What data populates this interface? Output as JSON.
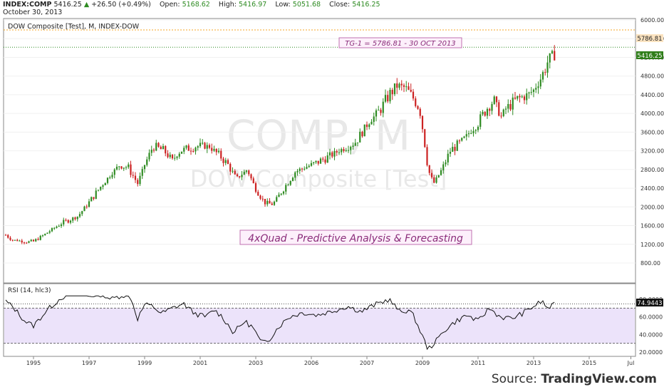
{
  "header": {
    "symbol": "INDEX:COMP",
    "last": "5416.25",
    "change": "+26.50 (+0.49%)",
    "open_label": "Open:",
    "open": "5168.62",
    "high_label": "High:",
    "high": "5416.97",
    "low_label": "Low:",
    "low": "5051.68",
    "close_label": "Close:",
    "close": "5416.25",
    "date": "October 30, 2013"
  },
  "chart_data": [
    {
      "type": "candlestick",
      "title": "DOW Composite [Test], M, INDEX-DOW",
      "watermark_big": "COMP, M",
      "watermark_small": "DOW Composite [Test]",
      "ylim": [
        900,
        6150
      ],
      "y_ticks": [
        "800.00",
        "1200.00",
        "1600.00",
        "2000.00",
        "2400.00",
        "2800.00",
        "3200.00",
        "3600.00",
        "4000.00",
        "4400.00",
        "4800.00",
        "5200.00",
        "5600.00",
        "6000.00"
      ],
      "x_ticks": [
        "1995",
        "1997",
        "1999",
        "2001",
        "2003",
        "2006",
        "2007",
        "2009",
        "2011",
        "2013",
        "2015",
        "Jul"
      ],
      "annotation_target": "TG-1 = 5786.81 - 30 OCT 2013",
      "target_value": 5786.81,
      "target_label": "5786.81",
      "last_value": 5416.25,
      "last_label": "5416.25",
      "annotation_main": "4xQuad - Predictive Analysis & Forecasting",
      "up_color": "#2e8b22",
      "down_color": "#cc2222",
      "target_line_color": "#f5a623",
      "last_line_color": "#2e8b22",
      "anchors": [
        [
          1994.0,
          1400
        ],
        [
          1994.2,
          1300
        ],
        [
          1994.8,
          1250
        ],
        [
          1995.0,
          1260
        ],
        [
          1995.5,
          1450
        ],
        [
          1996.0,
          1650
        ],
        [
          1996.6,
          1800
        ],
        [
          1997.0,
          2100
        ],
        [
          1997.5,
          2500
        ],
        [
          1998.1,
          2900
        ],
        [
          1998.4,
          2850
        ],
        [
          1998.75,
          2500
        ],
        [
          1999.0,
          2900
        ],
        [
          1999.3,
          3300
        ],
        [
          1999.7,
          3200
        ],
        [
          2000.0,
          3000
        ],
        [
          2000.3,
          3200
        ],
        [
          2000.8,
          3300
        ],
        [
          2001.3,
          3300
        ],
        [
          2001.7,
          3100
        ],
        [
          2002.0,
          2900
        ],
        [
          2002.3,
          2600
        ],
        [
          2002.7,
          2800
        ],
        [
          2002.9,
          2500
        ],
        [
          2003.3,
          2100
        ],
        [
          2003.6,
          2050
        ],
        [
          2003.9,
          2300
        ],
        [
          2004.4,
          2750
        ],
        [
          2005.2,
          2950
        ],
        [
          2005.7,
          3100
        ],
        [
          2006.3,
          3300
        ],
        [
          2006.6,
          3400
        ],
        [
          2007.0,
          3750
        ],
        [
          2007.5,
          4100
        ],
        [
          2007.8,
          4400
        ],
        [
          2008.1,
          4600
        ],
        [
          2008.4,
          4550
        ],
        [
          2008.7,
          4300
        ],
        [
          2008.9,
          4100
        ],
        [
          2009.05,
          3500
        ],
        [
          2009.2,
          2800
        ],
        [
          2009.4,
          2500
        ],
        [
          2009.7,
          2800
        ],
        [
          2010.0,
          3200
        ],
        [
          2010.4,
          3400
        ],
        [
          2010.7,
          3600
        ],
        [
          2011.0,
          3800
        ],
        [
          2011.3,
          4100
        ],
        [
          2011.6,
          4300
        ],
        [
          2011.8,
          3900
        ],
        [
          2012.0,
          4100
        ],
        [
          2012.4,
          4300
        ],
        [
          2012.8,
          4400
        ],
        [
          2013.0,
          4500
        ],
        [
          2013.3,
          4800
        ],
        [
          2013.5,
          5100
        ],
        [
          2013.7,
          5200
        ],
        [
          2013.83,
          5416.25
        ]
      ]
    },
    {
      "type": "line",
      "title": "RSI (14, hlc3)",
      "ylim": [
        15,
        85
      ],
      "y_ticks": [
        "20.0000",
        "40.0000",
        "60.0000",
        "80.0000"
      ],
      "levels": [
        70,
        30
      ],
      "last_value": 74.9443,
      "last_label": "74.9443",
      "band_color": "#ece3fa",
      "x": [
        1994.0,
        1994.3,
        1994.7,
        1995.0,
        1995.5,
        1996.0,
        1996.5,
        1997.0,
        1997.5,
        1997.8,
        1998.2,
        1998.5,
        1998.75,
        1999.0,
        1999.3,
        1999.6,
        2000.0,
        2000.4,
        2000.8,
        2001.2,
        2001.5,
        2001.8,
        2002.2,
        2002.6,
        2002.9,
        2003.2,
        2003.5,
        2003.8,
        2004.2,
        2004.7,
        2005.2,
        2005.8,
        2006.3,
        2006.8,
        2007.3,
        2007.8,
        2008.2,
        2008.5,
        2008.7,
        2009.0,
        2009.2,
        2009.5,
        2009.8,
        2010.2,
        2010.6,
        2011.0,
        2011.4,
        2011.8,
        2012.2,
        2012.6,
        2013.0,
        2013.3,
        2013.5,
        2013.7,
        2013.83
      ],
      "values": [
        78,
        70,
        55,
        50,
        68,
        82,
        88,
        84,
        86,
        80,
        85,
        82,
        58,
        74,
        72,
        64,
        70,
        75,
        64,
        60,
        68,
        60,
        42,
        55,
        48,
        30,
        35,
        48,
        60,
        65,
        62,
        67,
        72,
        66,
        74,
        80,
        65,
        68,
        60,
        38,
        23,
        33,
        45,
        55,
        62,
        55,
        70,
        60,
        58,
        64,
        72,
        78,
        70,
        73,
        74.9443
      ]
    }
  ],
  "source": {
    "prefix": "Source:",
    "site": "TradingView.com"
  }
}
